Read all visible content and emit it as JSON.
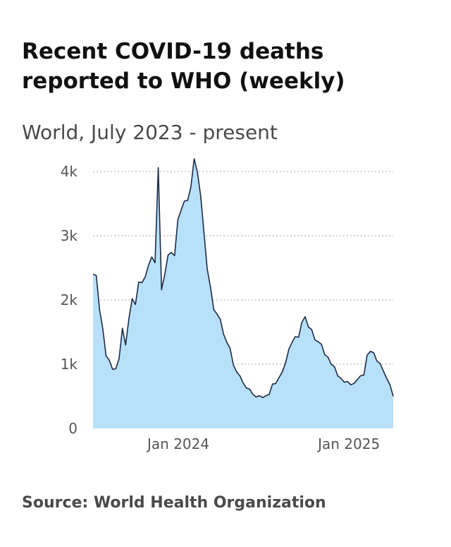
{
  "header": {
    "title": "Recent COVID-19 deaths reported to WHO (weekly)",
    "subtitle": "World, July 2023 - present"
  },
  "footer": {
    "source": "Source: World Health Organization"
  },
  "colors": {
    "area_fill": "#b8e0fa",
    "line_stroke": "#1d2b45",
    "grid": "#bbbbbb",
    "title": "#111111",
    "subtitle": "#4a4a4a",
    "tick_text": "#555555"
  },
  "chart_data": {
    "type": "area",
    "title": "Recent COVID-19 deaths reported to WHO (weekly)",
    "subtitle": "World, July 2023 - present",
    "xlabel": "",
    "ylabel": "",
    "x_start": "2023-07-02",
    "x_interval_days": 7,
    "x_range": [
      "2023-07-02",
      "2025-02-09"
    ],
    "ylim": [
      0,
      4000
    ],
    "grid": true,
    "legend": "none",
    "y_ticks": [
      {
        "value": 0,
        "label": "0"
      },
      {
        "value": 1000,
        "label": "1k"
      },
      {
        "value": 2000,
        "label": "2k"
      },
      {
        "value": 3000,
        "label": "3k"
      },
      {
        "value": 4000,
        "label": "4k"
      }
    ],
    "x_ticks": [
      {
        "date": "2024-01-01",
        "label": "Jan 2024"
      },
      {
        "date": "2025-01-01",
        "label": "Jan 2025"
      }
    ],
    "values": [
      2400,
      2380,
      1850,
      1550,
      1130,
      1060,
      920,
      930,
      1090,
      1560,
      1300,
      1710,
      2020,
      1930,
      2280,
      2270,
      2360,
      2540,
      2670,
      2580,
      4060,
      2160,
      2400,
      2700,
      2740,
      2690,
      3250,
      3400,
      3540,
      3550,
      3760,
      4200,
      3990,
      3620,
      3050,
      2480,
      2200,
      1850,
      1780,
      1700,
      1470,
      1340,
      1250,
      990,
      880,
      820,
      710,
      630,
      610,
      530,
      490,
      510,
      480,
      510,
      530,
      690,
      700,
      790,
      880,
      1020,
      1230,
      1340,
      1430,
      1420,
      1650,
      1740,
      1580,
      1540,
      1380,
      1350,
      1310,
      1150,
      1110,
      1000,
      960,
      820,
      780,
      720,
      730,
      680,
      700,
      760,
      820,
      830,
      1140,
      1200,
      1180,
      1050,
      1010,
      890,
      780,
      680,
      500
    ]
  }
}
